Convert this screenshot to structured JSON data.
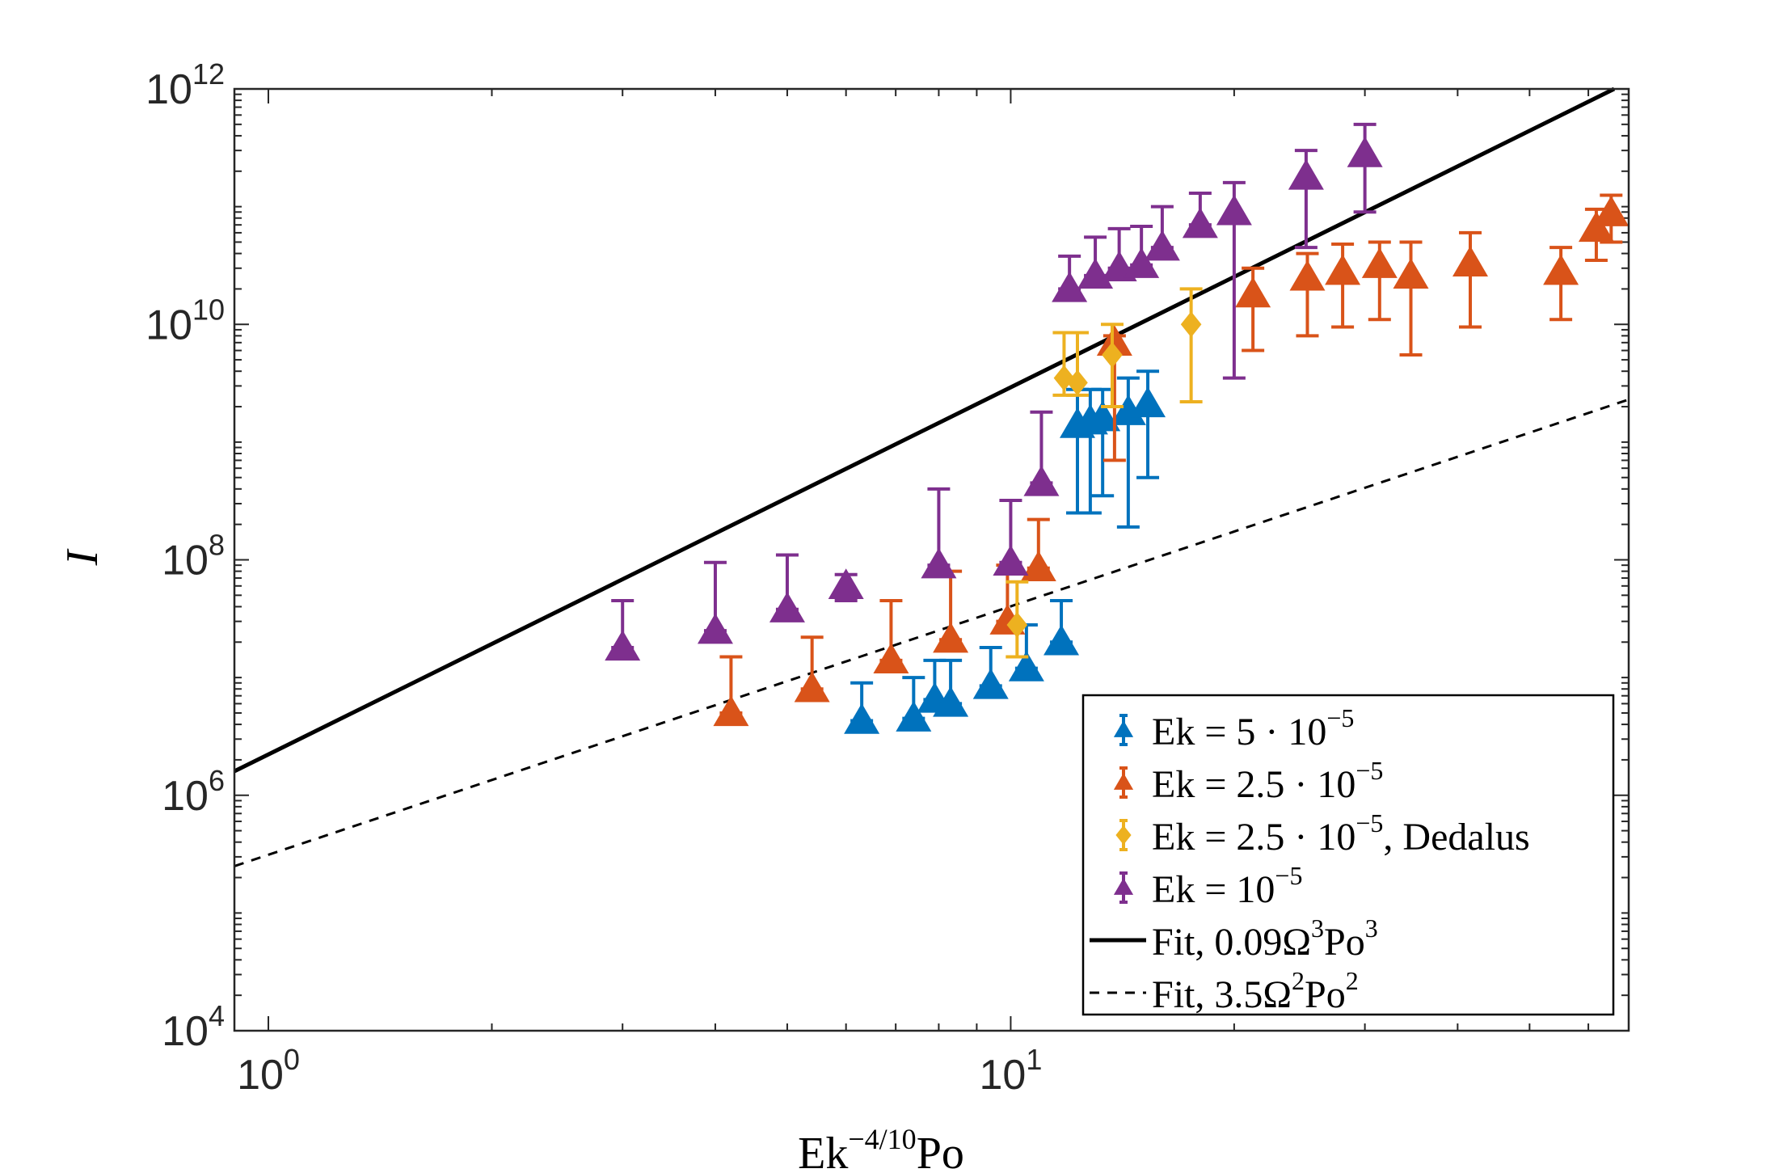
{
  "chart_data": {
    "type": "scatter",
    "title": "",
    "xlabel": {
      "base": "Ek",
      "sup": "−4/10",
      "tail": "Po"
    },
    "ylabel": "I",
    "xscale": "log",
    "yscale": "log",
    "xlim": [
      0.9,
      68
    ],
    "ylim": [
      10000,
      1000000000000
    ],
    "grid": false,
    "legend_position": "bottom-right",
    "x_ticks": [
      {
        "value": 1,
        "base": "10",
        "exp": "0"
      },
      {
        "value": 10,
        "base": "10",
        "exp": "1"
      }
    ],
    "y_ticks": [
      {
        "value": 10000,
        "base": "10",
        "exp": "4"
      },
      {
        "value": 1000000,
        "base": "10",
        "exp": "6"
      },
      {
        "value": 100000000,
        "base": "10",
        "exp": "8"
      },
      {
        "value": 10000000000,
        "base": "10",
        "exp": "10"
      },
      {
        "value": 1000000000000,
        "base": "10",
        "exp": "12"
      }
    ],
    "series": [
      {
        "name": "Ek = 5·10^-5",
        "legend": {
          "pre": "Ek = 5 · 10",
          "sup": "−5",
          "post": ""
        },
        "color": "#0072BD",
        "marker": "triangle",
        "points": [
          {
            "x": 6.3,
            "y": 4300000.0,
            "lo": 4300000.0,
            "hi": 9000000.0
          },
          {
            "x": 7.4,
            "y": 4500000.0,
            "lo": 4500000.0,
            "hi": 10000000.0
          },
          {
            "x": 7.9,
            "y": 6500000.0,
            "lo": 6500000.0,
            "hi": 14000000.0
          },
          {
            "x": 8.3,
            "y": 6000000.0,
            "lo": 6000000.0,
            "hi": 14000000.0
          },
          {
            "x": 9.4,
            "y": 8500000.0,
            "lo": 8500000.0,
            "hi": 18000000.0
          },
          {
            "x": 10.5,
            "y": 12000000.0,
            "lo": 12000000.0,
            "hi": 28000000.0
          },
          {
            "x": 11.7,
            "y": 20000000.0,
            "lo": 20000000.0,
            "hi": 45000000.0
          },
          {
            "x": 12.3,
            "y": 1400000000.0,
            "lo": 250000000.0,
            "hi": 2800000000.0
          },
          {
            "x": 12.8,
            "y": 1500000000.0,
            "lo": 250000000.0,
            "hi": 2800000000.0
          },
          {
            "x": 13.3,
            "y": 1600000000.0,
            "lo": 350000000.0,
            "hi": 2800000000.0
          },
          {
            "x": 14.4,
            "y": 1800000000.0,
            "lo": 190000000.0,
            "hi": 3500000000.0
          },
          {
            "x": 15.3,
            "y": 2100000000.0,
            "lo": 500000000.0,
            "hi": 4000000000.0
          }
        ]
      },
      {
        "name": "Ek = 2.5·10^-5",
        "legend": {
          "pre": "Ek = 2.5 · 10",
          "sup": "−5",
          "post": ""
        },
        "color": "#D95319",
        "marker": "triangle",
        "points": [
          {
            "x": 4.2,
            "y": 5000000.0,
            "lo": 5000000.0,
            "hi": 15000000.0
          },
          {
            "x": 5.4,
            "y": 8000000.0,
            "lo": 8000000.0,
            "hi": 22000000.0
          },
          {
            "x": 6.9,
            "y": 14000000.0,
            "lo": 14000000.0,
            "hi": 45000000.0
          },
          {
            "x": 8.3,
            "y": 21000000.0,
            "lo": 21000000.0,
            "hi": 80000000.0
          },
          {
            "x": 9.9,
            "y": 30000000.0,
            "lo": 30000000.0,
            "hi": 90000000.0
          },
          {
            "x": 10.9,
            "y": 85000000.0,
            "lo": 85000000.0,
            "hi": 220000000.0
          },
          {
            "x": 13.8,
            "y": 7000000000.0,
            "lo": 700000000.0,
            "hi": 8000000000.0
          },
          {
            "x": 21.2,
            "y": 18000000000.0,
            "lo": 6000000000.0,
            "hi": 30000000000.0
          },
          {
            "x": 25.1,
            "y": 25000000000.0,
            "lo": 8000000000.0,
            "hi": 40000000000.0
          },
          {
            "x": 28.0,
            "y": 28000000000.0,
            "lo": 9500000000.0,
            "hi": 48000000000.0
          },
          {
            "x": 31.4,
            "y": 32000000000.0,
            "lo": 11000000000.0,
            "hi": 50000000000.0
          },
          {
            "x": 34.6,
            "y": 26000000000.0,
            "lo": 5500000000.0,
            "hi": 50000000000.0
          },
          {
            "x": 41.6,
            "y": 33000000000.0,
            "lo": 9500000000.0,
            "hi": 60000000000.0
          },
          {
            "x": 55.1,
            "y": 28000000000.0,
            "lo": 11000000000.0,
            "hi": 45000000000.0
          },
          {
            "x": 61.5,
            "y": 65000000000.0,
            "lo": 35000000000.0,
            "hi": 95000000000.0
          },
          {
            "x": 64.4,
            "y": 88000000000.0,
            "lo": 50000000000.0,
            "hi": 125000000000.0
          }
        ]
      },
      {
        "name": "Ek = 2.5·10^-5, Dedalus",
        "legend": {
          "pre": "Ek = 2.5 · 10",
          "sup": "−5",
          "post": ", Dedalus"
        },
        "color": "#EDB120",
        "marker": "diamond",
        "points": [
          {
            "x": 10.2,
            "y": 28000000.0,
            "lo": 15000000.0,
            "hi": 65000000.0
          },
          {
            "x": 11.8,
            "y": 3500000000.0,
            "lo": 2500000000.0,
            "hi": 8500000000.0
          },
          {
            "x": 12.3,
            "y": 3200000000.0,
            "lo": 2500000000.0,
            "hi": 8500000000.0
          },
          {
            "x": 13.7,
            "y": 5500000000.0,
            "lo": 2000000000.0,
            "hi": 10000000000.0
          },
          {
            "x": 17.5,
            "y": 10000000000.0,
            "lo": 2200000000.0,
            "hi": 20000000000.0
          }
        ]
      },
      {
        "name": "Ek = 10^-5",
        "legend": {
          "pre": "Ek = 10",
          "sup": "−5",
          "post": ""
        },
        "color": "#7E2F8E",
        "marker": "triangle",
        "points": [
          {
            "x": 3.0,
            "y": 18000000.0,
            "lo": 18000000.0,
            "hi": 45000000.0
          },
          {
            "x": 4.0,
            "y": 25000000.0,
            "lo": 25000000.0,
            "hi": 95000000.0
          },
          {
            "x": 5.0,
            "y": 38000000.0,
            "lo": 38000000.0,
            "hi": 110000000.0
          },
          {
            "x": 6.0,
            "y": 60000000.0,
            "lo": 45000000.0,
            "hi": 75000000.0
          },
          {
            "x": 8.0,
            "y": 90000000.0,
            "lo": 90000000.0,
            "hi": 400000000.0
          },
          {
            "x": 10.0,
            "y": 95000000.0,
            "lo": 95000000.0,
            "hi": 320000000.0
          },
          {
            "x": 11.0,
            "y": 450000000.0,
            "lo": 450000000.0,
            "hi": 1800000000.0
          },
          {
            "x": 12.0,
            "y": 20000000000.0,
            "lo": 20000000000.0,
            "hi": 38000000000.0
          },
          {
            "x": 13.0,
            "y": 26000000000.0,
            "lo": 26000000000.0,
            "hi": 55000000000.0
          },
          {
            "x": 14.0,
            "y": 30000000000.0,
            "lo": 30000000000.0,
            "hi": 65000000000.0
          },
          {
            "x": 15.0,
            "y": 32000000000.0,
            "lo": 32000000000.0,
            "hi": 68000000000.0
          },
          {
            "x": 16.0,
            "y": 45000000000.0,
            "lo": 45000000000.0,
            "hi": 100000000000.0
          },
          {
            "x": 18.0,
            "y": 70000000000.0,
            "lo": 70000000000.0,
            "hi": 130000000000.0
          },
          {
            "x": 20.0,
            "y": 90000000000.0,
            "lo": 3500000000.0,
            "hi": 160000000000.0
          },
          {
            "x": 25.0,
            "y": 180000000000.0,
            "lo": 45000000000.0,
            "hi": 300000000000.0
          },
          {
            "x": 30.0,
            "y": 280000000000.0,
            "lo": 90000000000.0,
            "hi": 500000000000.0
          }
        ]
      }
    ],
    "fit_lines": [
      {
        "name": "Fit, 0.09Ω³Po³",
        "legend": {
          "pre": "Fit, 0.09Ω",
          "sup1": "3",
          "mid": "Po",
          "sup2": "3"
        },
        "style": "solid",
        "color": "#000000",
        "points": [
          {
            "x": 0.9,
            "y": 1600000.0
          },
          {
            "x": 65.0,
            "y": 1000000000000.0
          }
        ]
      },
      {
        "name": "Fit, 3.5Ω²Po²",
        "legend": {
          "pre": "Fit, 3.5Ω",
          "sup1": "2",
          "mid": "Po",
          "sup2": "2"
        },
        "style": "dashed",
        "color": "#000000",
        "points": [
          {
            "x": 0.9,
            "y": 250000.0
          },
          {
            "x": 68.0,
            "y": 2300000000.0
          }
        ]
      }
    ]
  }
}
